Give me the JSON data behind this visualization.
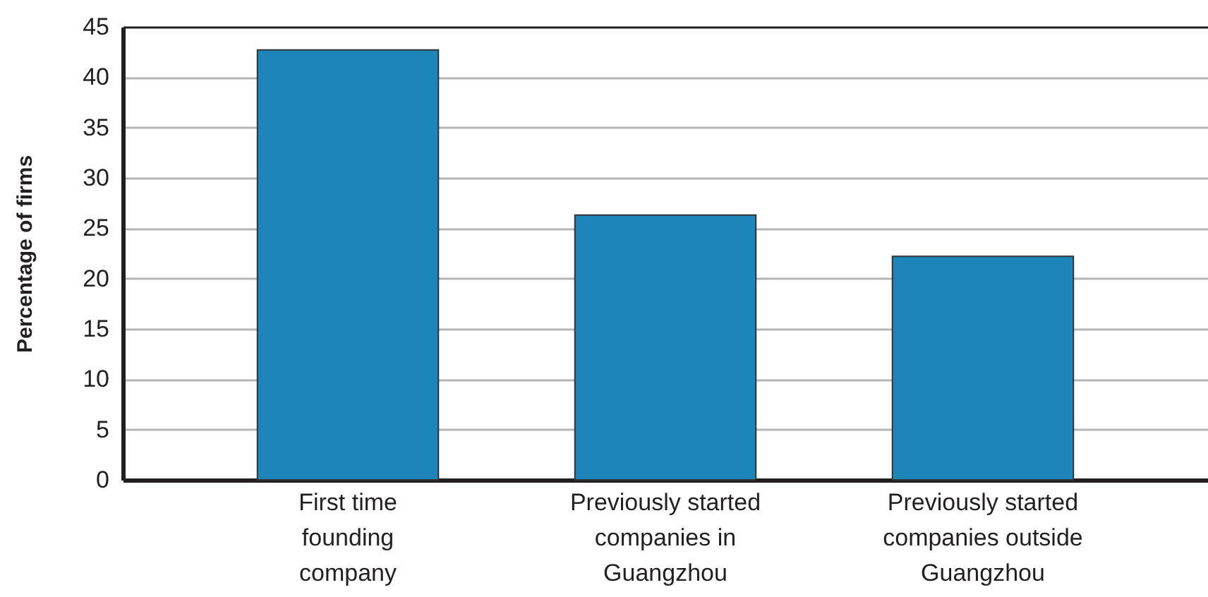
{
  "chart_data": {
    "type": "bar",
    "ylabel": "Percentage of firms",
    "categories": [
      "First time\nfounding\ncompany",
      "Previously started\ncompanies in\nGuangzhou",
      "Previously started\ncompanies outside\nGuangzhou"
    ],
    "values": [
      42.7,
      26.3,
      22.2
    ],
    "color": "#1c86ba",
    "ylim": [
      0,
      45
    ],
    "yticks": [
      0,
      5,
      10,
      15,
      20,
      25,
      30,
      35,
      40,
      45
    ],
    "grid": "y"
  }
}
